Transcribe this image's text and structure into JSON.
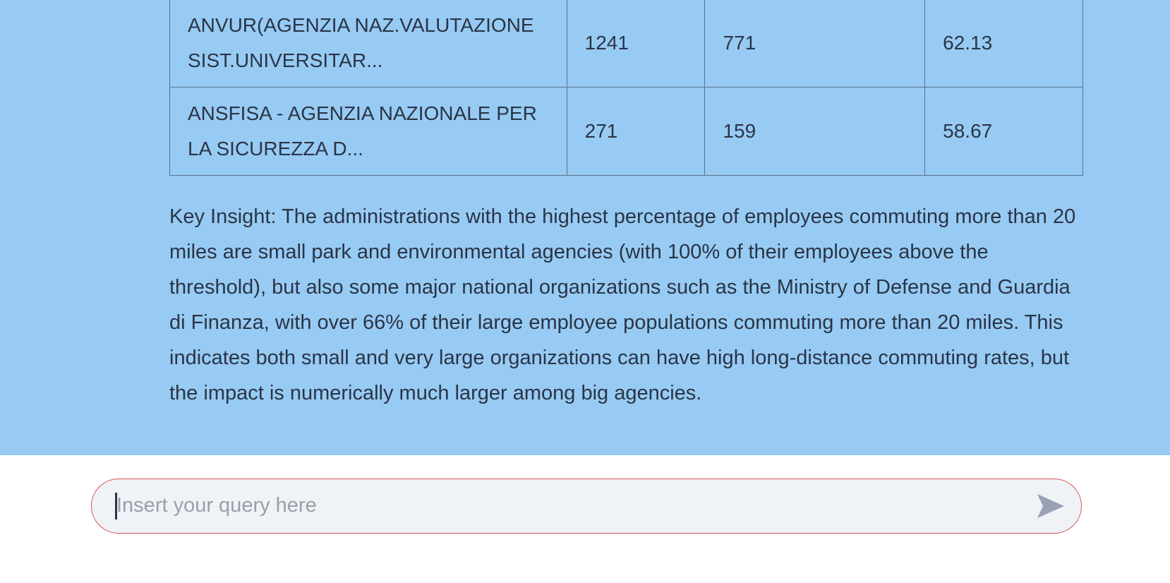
{
  "table": {
    "rows": [
      {
        "name": "ANVUR(AGENZIA NAZ.VALUTAZIONE SIST.UNIVERSITAR...",
        "total": "1241",
        "over_20": "771",
        "percent": "62.13"
      },
      {
        "name": "ANSFISA - AGENZIA NAZIONALE PER LA SICUREZZA D...",
        "total": "271",
        "over_20": "159",
        "percent": "58.67"
      }
    ]
  },
  "insight": {
    "text": "Key Insight: The administrations with the highest percentage of employees commuting more than 20 miles are small park and environmental agencies (with 100% of their employees above the threshold), but also some major national organizations such as the Ministry of Defense and Guardia di Finanza, with over 66% of their large employee populations commuting more than 20 miles. This indicates both small and very large organizations can have high long-distance commuting rates, but the impact is numerically much larger among big agencies."
  },
  "query_input": {
    "value": "",
    "placeholder": "Insert your query here",
    "send_icon": "send-arrow-icon"
  },
  "colors": {
    "chat_background": "#97cbf4",
    "input_border": "#d9534f",
    "input_background": "#eff2f6",
    "text": "#2b3445",
    "send_icon": "#9aa1b5"
  }
}
